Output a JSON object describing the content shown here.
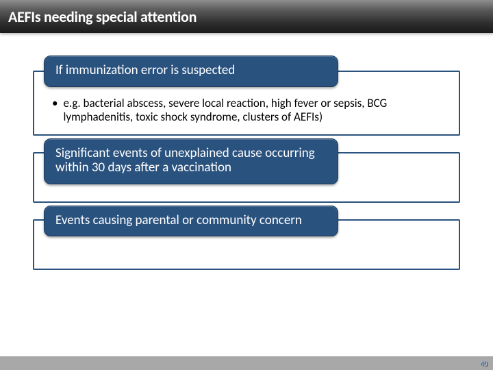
{
  "slide": {
    "title": "AEFIs needing special attention",
    "page_number": "40"
  },
  "blocks": [
    {
      "pill": "If immunization error is suspected",
      "body": "e.g. bacterial abscess, severe local reaction, high fever or sepsis, BCG lymphadenitis, toxic shock syndrome, clusters of AEFIs)"
    },
    {
      "pill": "Significant events of unexplained cause occurring within 30 days after a vaccination",
      "body": null
    },
    {
      "pill": "Events causing parental or community concern",
      "body": null
    }
  ],
  "colors": {
    "accent": "#2a527e",
    "title_gradient_top": "#8f8f8f",
    "title_gradient_bottom": "#1a1a1a",
    "bottom_bar": "#a8a8a8"
  }
}
